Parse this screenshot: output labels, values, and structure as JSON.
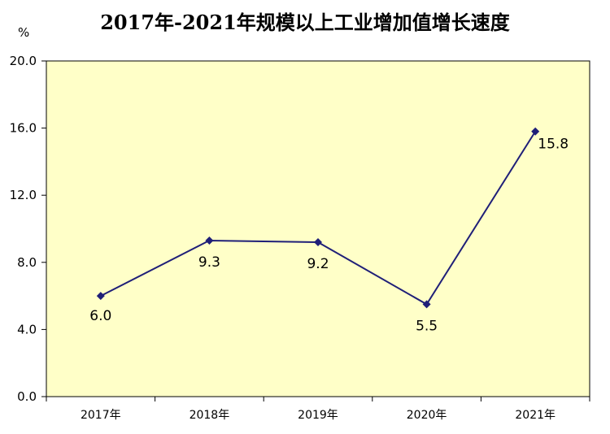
{
  "chart_data": {
    "type": "line",
    "title": "2017年-2021年规模以上工业增加值增长速度",
    "ylabel": "%",
    "xlabel": "",
    "categories": [
      "2017年",
      "2018年",
      "2019年",
      "2020年",
      "2021年"
    ],
    "series": [
      {
        "values": [
          6.0,
          9.3,
          9.2,
          5.5,
          15.8
        ]
      }
    ],
    "data_labels": [
      "6.0",
      "9.3",
      "9.2",
      "5.5",
      "15.8"
    ],
    "ylim": [
      0,
      20
    ],
    "yticks": [
      0,
      4,
      8,
      12,
      16,
      20
    ],
    "ytick_labels": [
      "0.0",
      "4.0",
      "8.0",
      "12.0",
      "16.0",
      "20.0"
    ],
    "grid": false,
    "colors": {
      "plot_background": "#ffffc8",
      "line": "#1f1f78",
      "marker": "#1f1f78"
    }
  }
}
